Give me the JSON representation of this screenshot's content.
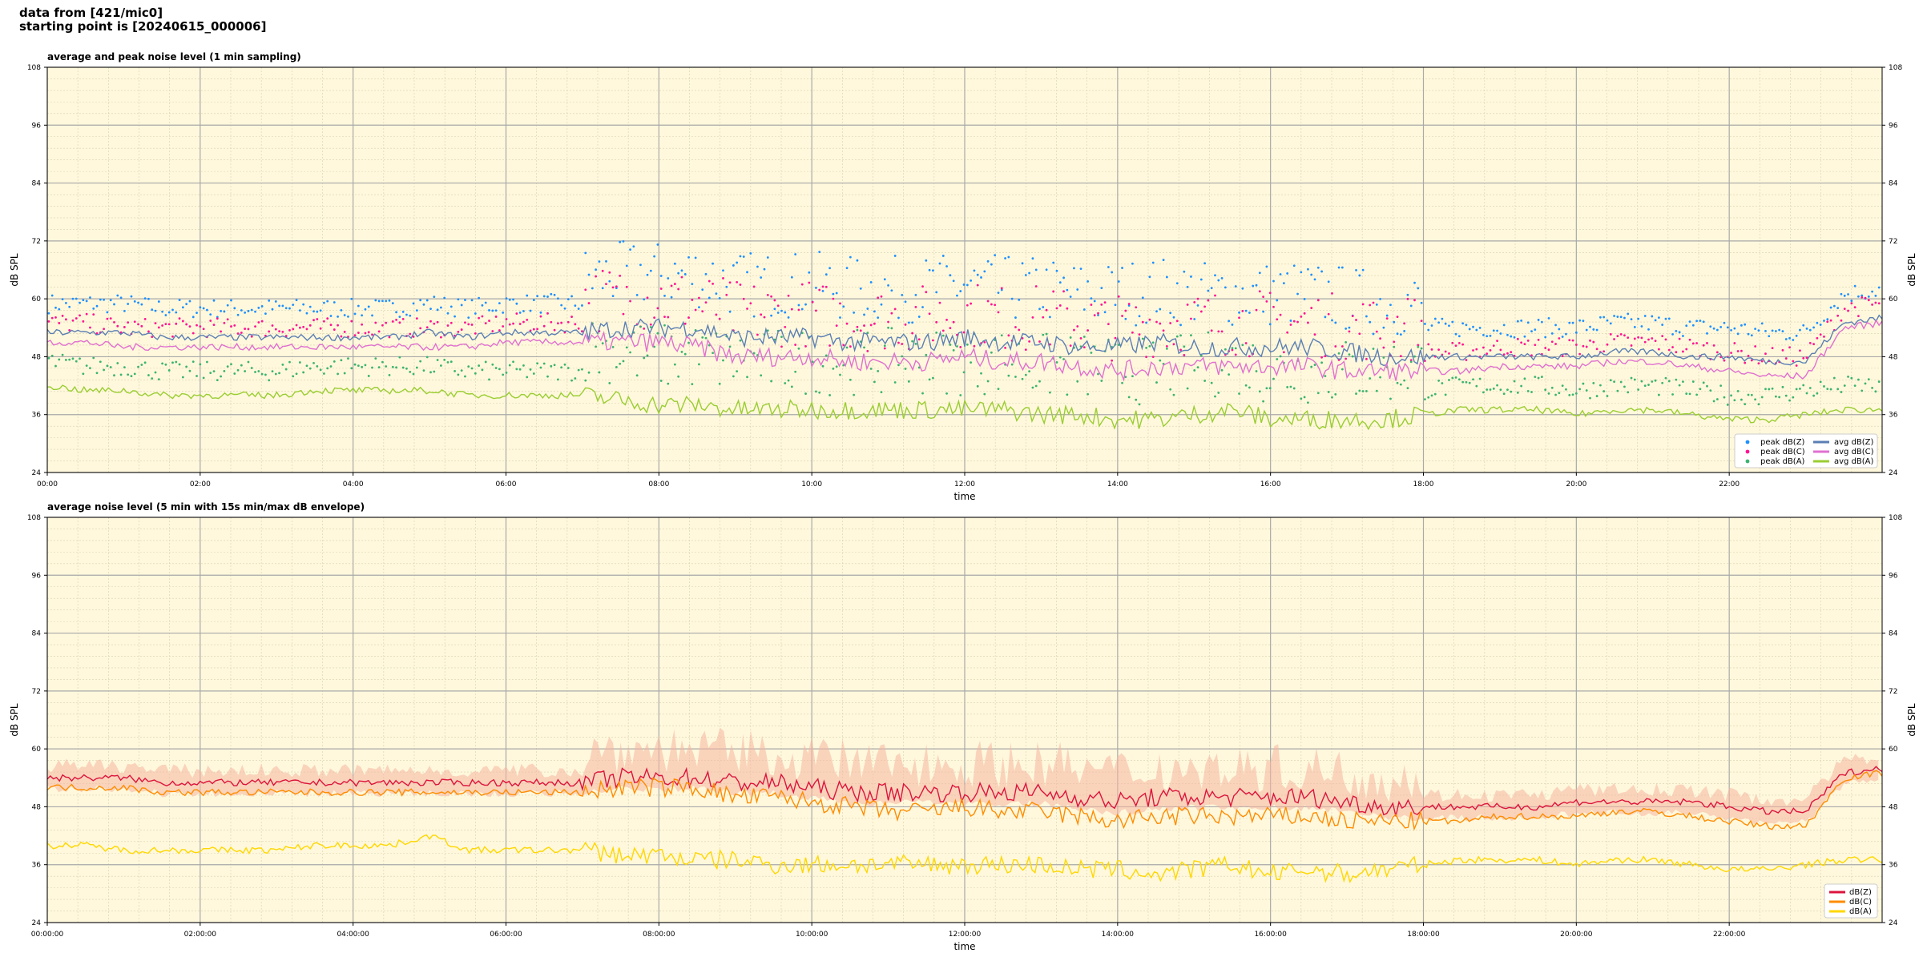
{
  "header": {
    "line1": "data from [421/mic0]",
    "line2": "starting point is [20240615_000006]"
  },
  "chart_data": [
    {
      "type": "line",
      "title": "average and peak noise level (1 min sampling)",
      "xlabel": "time",
      "ylabel": "dB SPL",
      "xlim": [
        "00:00",
        "24:00"
      ],
      "ylim": [
        24,
        108
      ],
      "x_ticks": [
        "00:00",
        "02:00",
        "04:00",
        "06:00",
        "08:00",
        "10:00",
        "12:00",
        "14:00",
        "16:00",
        "18:00",
        "20:00",
        "22:00"
      ],
      "y_ticks": [
        24,
        36,
        48,
        60,
        72,
        84,
        96,
        108
      ],
      "grid": true,
      "legend": "bottom-right",
      "x_hours": [
        0,
        0.5,
        1,
        1.5,
        2,
        2.5,
        3,
        3.5,
        4,
        4.5,
        5,
        5.5,
        6,
        6.5,
        7,
        7.5,
        8,
        8.5,
        9,
        9.5,
        10,
        10.5,
        11,
        11.5,
        12,
        12.5,
        13,
        13.5,
        14,
        14.5,
        15,
        15.5,
        16,
        16.5,
        17,
        17.5,
        18,
        18.5,
        19,
        19.5,
        20,
        20.5,
        21,
        21.5,
        22,
        22.5,
        23,
        23.5,
        24
      ],
      "series": [
        {
          "name": "avg dB(Z)",
          "kind": "line",
          "color": "#5b7fb4",
          "values": [
            53,
            53,
            53,
            52,
            52,
            52,
            52,
            52,
            52,
            52,
            53,
            52,
            53,
            53,
            53,
            54,
            54,
            54,
            52,
            52,
            52,
            51,
            51,
            51,
            52,
            51,
            51,
            50,
            50,
            51,
            50,
            50,
            50,
            50,
            49,
            48,
            48,
            48,
            48,
            48,
            48,
            49,
            49,
            48,
            48,
            47,
            47,
            55,
            56
          ]
        },
        {
          "name": "avg dB(C)",
          "kind": "line",
          "color": "#e070d0",
          "values": [
            51,
            51,
            50,
            50,
            50,
            50,
            50,
            50,
            50,
            50,
            50,
            50,
            51,
            51,
            51,
            51,
            51,
            50,
            48,
            48,
            48,
            47,
            47,
            47,
            48,
            47,
            47,
            46,
            45,
            46,
            46,
            46,
            46,
            46,
            45,
            45,
            45,
            45,
            46,
            46,
            46,
            47,
            47,
            46,
            45,
            44,
            44,
            54,
            55
          ]
        },
        {
          "name": "avg dB(A)",
          "kind": "line",
          "color": "#9acd32",
          "values": [
            42,
            41,
            41,
            40,
            40,
            40,
            40,
            41,
            41,
            41,
            41,
            40,
            40,
            40,
            40,
            39,
            38,
            38,
            37,
            37,
            37,
            37,
            37,
            37,
            37,
            37,
            36,
            36,
            35,
            35,
            36,
            37,
            35,
            35,
            35,
            35,
            36,
            37,
            37,
            37,
            36,
            37,
            37,
            36,
            35,
            35,
            36,
            37,
            37
          ]
        },
        {
          "name": "peak dB(Z)",
          "kind": "scatter",
          "color": "#1e90ff",
          "values": []
        },
        {
          "name": "peak dB(C)",
          "kind": "scatter",
          "color": "#ff1493",
          "values": []
        },
        {
          "name": "peak dB(A)",
          "kind": "scatter",
          "color": "#3cb371",
          "values": []
        }
      ]
    },
    {
      "type": "line",
      "title": "average noise level (5 min with 15s min/max dB envelope)",
      "xlabel": "time",
      "ylabel": "dB SPL",
      "xlim": [
        "00:00:00",
        "24:00:00"
      ],
      "ylim": [
        24,
        108
      ],
      "x_ticks": [
        "00:00:00",
        "02:00:00",
        "04:00:00",
        "06:00:00",
        "08:00:00",
        "10:00:00",
        "12:00:00",
        "14:00:00",
        "16:00:00",
        "18:00:00",
        "20:00:00",
        "22:00:00"
      ],
      "y_ticks": [
        24,
        36,
        48,
        60,
        72,
        84,
        96,
        108
      ],
      "grid": true,
      "legend": "bottom-right",
      "x_hours": [
        0,
        0.5,
        1,
        1.5,
        2,
        2.5,
        3,
        3.5,
        4,
        4.5,
        5,
        5.5,
        6,
        6.5,
        7,
        7.5,
        8,
        8.5,
        9,
        9.5,
        10,
        10.5,
        11,
        11.5,
        12,
        12.5,
        13,
        13.5,
        14,
        14.5,
        15,
        15.5,
        16,
        16.5,
        17,
        17.5,
        18,
        18.5,
        19,
        19.5,
        20,
        20.5,
        21,
        21.5,
        22,
        22.5,
        23,
        23.5,
        24
      ],
      "series": [
        {
          "name": "dB(Z)",
          "kind": "line",
          "color": "#dc143c",
          "values": [
            54,
            54,
            54,
            53,
            53,
            53,
            53,
            53,
            53,
            53,
            53,
            53,
            53,
            53,
            53,
            54,
            54,
            54,
            53,
            53,
            52,
            51,
            51,
            51,
            51,
            51,
            51,
            50,
            49,
            50,
            50,
            50,
            50,
            50,
            49,
            48,
            48,
            48,
            48,
            48,
            49,
            49,
            49,
            49,
            48,
            47,
            47,
            55,
            56
          ]
        },
        {
          "name": "dB(C)",
          "kind": "line",
          "color": "#ff8c00",
          "values": [
            52,
            52,
            52,
            51,
            51,
            51,
            51,
            51,
            51,
            51,
            51,
            51,
            51,
            51,
            51,
            52,
            52,
            52,
            50,
            50,
            49,
            48,
            47,
            47,
            48,
            47,
            47,
            46,
            45,
            46,
            46,
            46,
            46,
            46,
            45,
            45,
            45,
            45,
            46,
            46,
            46,
            47,
            47,
            46,
            45,
            44,
            44,
            54,
            55
          ]
        },
        {
          "name": "dB(A)",
          "kind": "line",
          "color": "#ffd700",
          "values": [
            40,
            40,
            39,
            39,
            39,
            39,
            39,
            40,
            40,
            40,
            42,
            39,
            39,
            39,
            39,
            38,
            38,
            37,
            37,
            36,
            36,
            36,
            36,
            36,
            36,
            36,
            36,
            35,
            35,
            34,
            35,
            36,
            34,
            35,
            34,
            35,
            36,
            37,
            37,
            37,
            36,
            37,
            37,
            36,
            35,
            35,
            36,
            37,
            37
          ]
        }
      ]
    }
  ]
}
